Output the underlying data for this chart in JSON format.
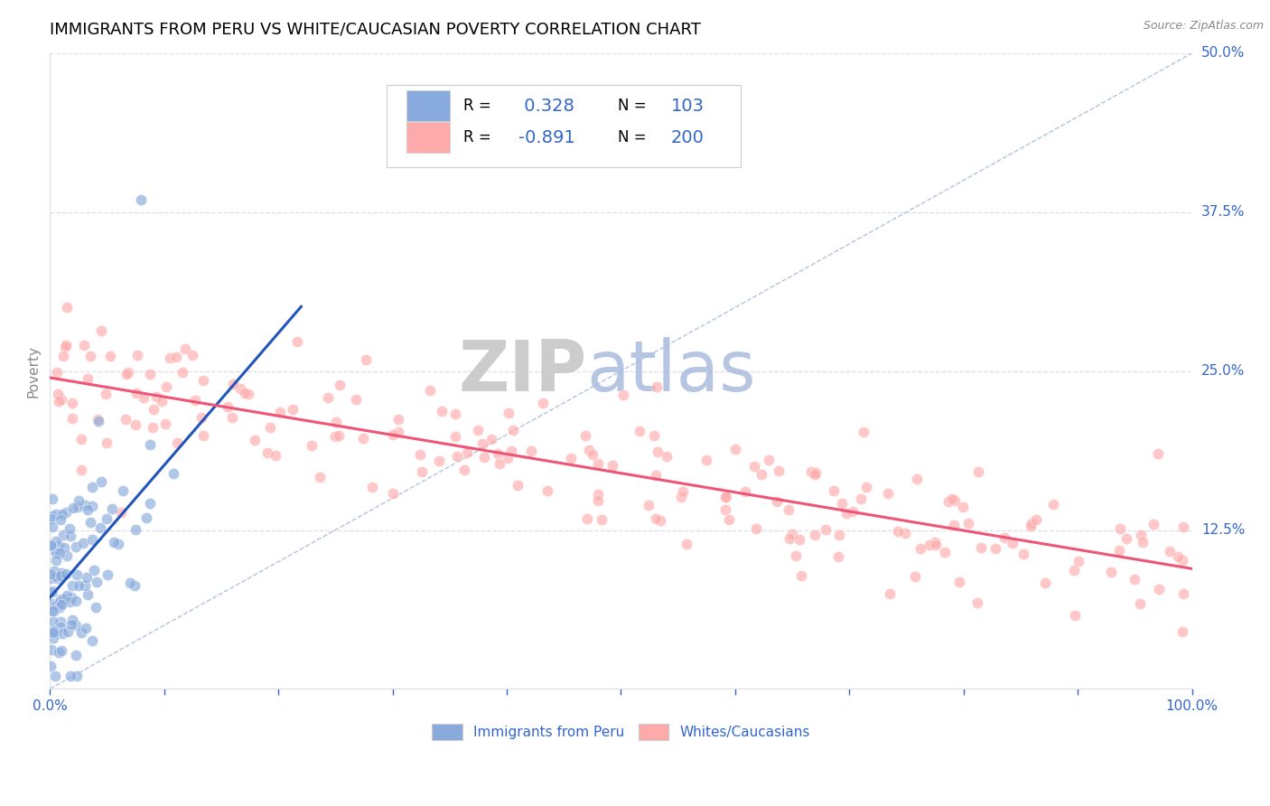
{
  "title": "IMMIGRANTS FROM PERU VS WHITE/CAUCASIAN POVERTY CORRELATION CHART",
  "source": "Source: ZipAtlas.com",
  "ylabel": "Poverty",
  "xlim": [
    0,
    1
  ],
  "ylim": [
    0,
    0.5
  ],
  "yticks": [
    0,
    0.125,
    0.25,
    0.375,
    0.5
  ],
  "xticks": [
    0,
    0.1,
    0.2,
    0.3,
    0.4,
    0.5,
    0.6,
    0.7,
    0.8,
    0.9,
    1.0
  ],
  "blue_R": 0.328,
  "blue_N": 103,
  "pink_R": -0.891,
  "pink_N": 200,
  "blue_color": "#88aadd",
  "pink_color": "#ffaaaa",
  "blue_line_color": "#2255bb",
  "pink_line_color": "#ee5577",
  "ref_line_color": "#aabbdd",
  "grid_color": "#ddddee",
  "legend_label_blue": "Immigrants from Peru",
  "legend_label_pink": "Whites/Caucasians",
  "title_fontsize": 13,
  "tick_fontsize": 11,
  "watermark_zip_color": "#cccccc",
  "watermark_atlas_color": "#aabbdd"
}
